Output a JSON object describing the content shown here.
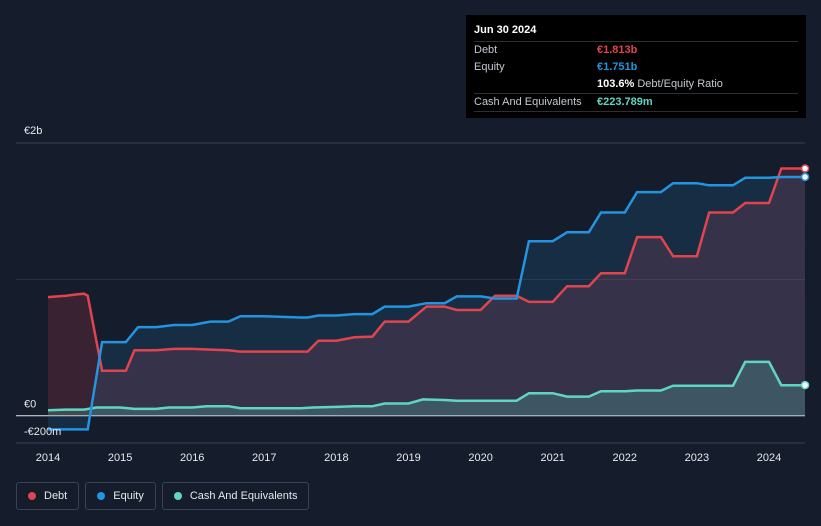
{
  "tooltip": {
    "date": "Jun 30 2024",
    "debt_label": "Debt",
    "debt_value": "€1.813b",
    "equity_label": "Equity",
    "equity_value": "€1.751b",
    "ratio_value": "103.6%",
    "ratio_label": "Debt/Equity Ratio",
    "cash_label": "Cash And Equivalents",
    "cash_value": "€223.789m"
  },
  "legend": {
    "debt": "Debt",
    "equity": "Equity",
    "cash": "Cash And Equivalents"
  },
  "colors": {
    "debt": "#e0454f",
    "equity": "#2394df",
    "cash": "#5fd6c4",
    "background": "#151c2b"
  },
  "chart_data": {
    "type": "area",
    "title": "",
    "xlabel": "",
    "ylabel": "",
    "ylim": [
      -200,
      2000
    ],
    "y_ticks": [
      {
        "value": 2000,
        "label": "€2b"
      },
      {
        "value": 0,
        "label": "€0"
      },
      {
        "value": -200,
        "label": "-€200m"
      }
    ],
    "x_ticks": [
      {
        "value": 2014.0,
        "label": "2014"
      },
      {
        "value": 2015.0,
        "label": "2015"
      },
      {
        "value": 2016.0,
        "label": "2016"
      },
      {
        "value": 2017.0,
        "label": "2017"
      },
      {
        "value": 2018.0,
        "label": "2018"
      },
      {
        "value": 2019.0,
        "label": "2019"
      },
      {
        "value": 2020.0,
        "label": "2020"
      },
      {
        "value": 2021.0,
        "label": "2021"
      },
      {
        "value": 2022.0,
        "label": "2022"
      },
      {
        "value": 2023.0,
        "label": "2023"
      },
      {
        "value": 2024.0,
        "label": "2024"
      }
    ],
    "xlim": [
      2013.5,
      2024.5
    ],
    "series": [
      {
        "name": "Debt",
        "points": [
          [
            2014.0,
            870
          ],
          [
            2014.25,
            880
          ],
          [
            2014.4,
            890
          ],
          [
            2014.5,
            895
          ],
          [
            2014.55,
            880
          ],
          [
            2014.75,
            330
          ],
          [
            2015.0,
            330
          ],
          [
            2015.08,
            330
          ],
          [
            2015.2,
            480
          ],
          [
            2015.5,
            480
          ],
          [
            2015.75,
            490
          ],
          [
            2016.0,
            490
          ],
          [
            2016.25,
            485
          ],
          [
            2016.5,
            480
          ],
          [
            2016.67,
            470
          ],
          [
            2017.0,
            470
          ],
          [
            2017.5,
            470
          ],
          [
            2017.6,
            470
          ],
          [
            2017.75,
            550
          ],
          [
            2018.0,
            550
          ],
          [
            2018.25,
            575
          ],
          [
            2018.5,
            580
          ],
          [
            2018.67,
            690
          ],
          [
            2019.0,
            690
          ],
          [
            2019.25,
            800
          ],
          [
            2019.5,
            800
          ],
          [
            2019.67,
            775
          ],
          [
            2020.0,
            775
          ],
          [
            2020.2,
            880
          ],
          [
            2020.5,
            880
          ],
          [
            2020.67,
            835
          ],
          [
            2021.0,
            835
          ],
          [
            2021.2,
            950
          ],
          [
            2021.5,
            950
          ],
          [
            2021.67,
            1045
          ],
          [
            2022.0,
            1045
          ],
          [
            2022.17,
            1310
          ],
          [
            2022.5,
            1310
          ],
          [
            2022.67,
            1170
          ],
          [
            2023.0,
            1170
          ],
          [
            2023.17,
            1490
          ],
          [
            2023.5,
            1490
          ],
          [
            2023.67,
            1560
          ],
          [
            2024.0,
            1560
          ],
          [
            2024.17,
            1813
          ],
          [
            2024.5,
            1813
          ]
        ]
      },
      {
        "name": "Equity",
        "points": [
          [
            2014.0,
            -100
          ],
          [
            2014.25,
            -100
          ],
          [
            2014.5,
            -100
          ],
          [
            2014.55,
            -100
          ],
          [
            2014.75,
            540
          ],
          [
            2015.0,
            540
          ],
          [
            2015.08,
            540
          ],
          [
            2015.25,
            650
          ],
          [
            2015.5,
            650
          ],
          [
            2015.75,
            665
          ],
          [
            2016.0,
            665
          ],
          [
            2016.25,
            690
          ],
          [
            2016.5,
            690
          ],
          [
            2016.67,
            730
          ],
          [
            2017.0,
            730
          ],
          [
            2017.5,
            720
          ],
          [
            2017.6,
            720
          ],
          [
            2017.75,
            735
          ],
          [
            2018.0,
            735
          ],
          [
            2018.25,
            745
          ],
          [
            2018.5,
            745
          ],
          [
            2018.67,
            800
          ],
          [
            2019.0,
            800
          ],
          [
            2019.25,
            825
          ],
          [
            2019.5,
            825
          ],
          [
            2019.67,
            875
          ],
          [
            2020.0,
            875
          ],
          [
            2020.2,
            860
          ],
          [
            2020.5,
            860
          ],
          [
            2020.67,
            1280
          ],
          [
            2021.0,
            1280
          ],
          [
            2021.2,
            1345
          ],
          [
            2021.5,
            1345
          ],
          [
            2021.67,
            1490
          ],
          [
            2022.0,
            1490
          ],
          [
            2022.17,
            1640
          ],
          [
            2022.5,
            1640
          ],
          [
            2022.67,
            1705
          ],
          [
            2023.0,
            1705
          ],
          [
            2023.17,
            1690
          ],
          [
            2023.5,
            1690
          ],
          [
            2023.67,
            1745
          ],
          [
            2024.0,
            1745
          ],
          [
            2024.17,
            1751
          ],
          [
            2024.5,
            1751
          ]
        ]
      },
      {
        "name": "Cash And Equivalents",
        "points": [
          [
            2014.0,
            40
          ],
          [
            2014.25,
            45
          ],
          [
            2014.5,
            45
          ],
          [
            2014.67,
            60
          ],
          [
            2015.0,
            60
          ],
          [
            2015.2,
            50
          ],
          [
            2015.5,
            50
          ],
          [
            2015.67,
            60
          ],
          [
            2016.0,
            60
          ],
          [
            2016.2,
            70
          ],
          [
            2016.5,
            70
          ],
          [
            2016.67,
            55
          ],
          [
            2017.0,
            55
          ],
          [
            2017.5,
            55
          ],
          [
            2017.67,
            60
          ],
          [
            2018.0,
            65
          ],
          [
            2018.25,
            70
          ],
          [
            2018.5,
            70
          ],
          [
            2018.67,
            90
          ],
          [
            2019.0,
            90
          ],
          [
            2019.2,
            120
          ],
          [
            2019.5,
            115
          ],
          [
            2019.67,
            110
          ],
          [
            2020.0,
            110
          ],
          [
            2020.2,
            110
          ],
          [
            2020.5,
            110
          ],
          [
            2020.67,
            165
          ],
          [
            2021.0,
            165
          ],
          [
            2021.2,
            140
          ],
          [
            2021.5,
            140
          ],
          [
            2021.67,
            180
          ],
          [
            2022.0,
            180
          ],
          [
            2022.17,
            185
          ],
          [
            2022.5,
            185
          ],
          [
            2022.67,
            220
          ],
          [
            2023.0,
            220
          ],
          [
            2023.17,
            220
          ],
          [
            2023.5,
            220
          ],
          [
            2023.67,
            395
          ],
          [
            2024.0,
            395
          ],
          [
            2024.17,
            224
          ],
          [
            2024.5,
            224
          ]
        ]
      }
    ]
  }
}
